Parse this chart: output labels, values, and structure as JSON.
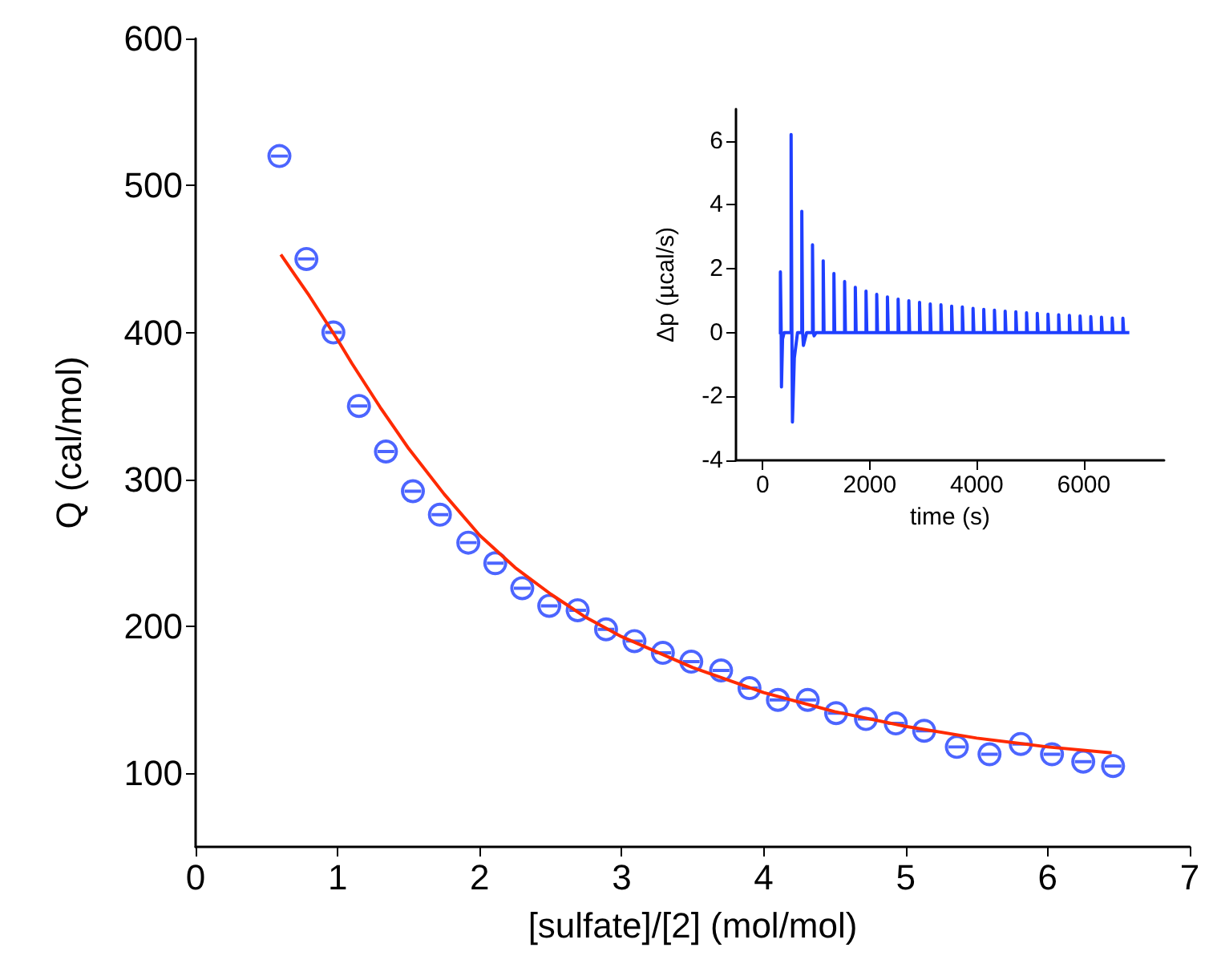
{
  "chart_data": [
    {
      "type": "scatter",
      "xlabel": "[sulfate]/[2] (mol/mol)",
      "ylabel": "Q (cal/mol)",
      "xlim": [
        0,
        7
      ],
      "xticks": [
        0,
        1,
        2,
        3,
        4,
        5,
        6,
        7
      ],
      "ylim": [
        50,
        600
      ],
      "yticks": [
        100,
        200,
        300,
        400,
        500,
        600
      ],
      "marker": "circle",
      "series": [
        {
          "color": "#1f3fff",
          "x": [
            0.59,
            0.78,
            0.97,
            1.15,
            1.34,
            1.53,
            1.72,
            1.92,
            2.11,
            2.3,
            2.49,
            2.69,
            2.89,
            3.09,
            3.29,
            3.49,
            3.7,
            3.9,
            4.1,
            4.31,
            4.51,
            4.72,
            4.93,
            5.13,
            5.36,
            5.59,
            5.81,
            6.03,
            6.25,
            6.46
          ],
          "values": [
            520,
            450,
            400,
            350,
            319,
            292,
            276,
            257,
            243,
            226,
            214,
            211,
            198,
            190,
            182,
            176,
            170,
            158,
            150,
            150,
            141,
            137,
            134,
            129,
            118,
            113,
            120,
            113,
            108,
            105
          ]
        },
        {
          "type": "line",
          "color": "#ff2a00",
          "marker": "none",
          "x": [
            0.6,
            0.7,
            0.8,
            0.9,
            1.0,
            1.1,
            1.2,
            1.3,
            1.4,
            1.5,
            1.75,
            2.0,
            2.25,
            2.5,
            2.75,
            3.0,
            3.5,
            4.0,
            4.5,
            5.0,
            5.5,
            6.0,
            6.45
          ],
          "values": [
            453,
            439,
            425,
            410,
            395,
            379,
            364,
            349,
            335,
            321,
            290,
            262,
            240,
            222,
            206,
            193,
            172,
            155,
            142,
            132,
            124,
            118,
            114
          ]
        }
      ]
    },
    {
      "type": "line",
      "xlabel": "time (s)",
      "ylabel": "Δp (µcal/s)",
      "xlim": [
        -500,
        7500
      ],
      "xticks": [
        0,
        2000,
        4000,
        6000
      ],
      "ylim": [
        -4,
        7
      ],
      "yticks": [
        -4,
        -2,
        0,
        2,
        4,
        6
      ],
      "marker": "none",
      "series": [
        {
          "color": "#1f3fff",
          "x": [
            300,
            330,
            330,
            345,
            350,
            370,
            400,
            530,
            530,
            545,
            555,
            590,
            650,
            730,
            730,
            745,
            760,
            820,
            930,
            930,
            945,
            960,
            1000,
            1130,
            1130,
            1145,
            1330,
            1330,
            1345,
            1530,
            1530,
            1545,
            1730,
            1730,
            1745,
            1930,
            1930,
            1945,
            2130,
            2130,
            2145,
            2330,
            2330,
            2345,
            2530,
            2530,
            2545,
            2730,
            2730,
            2745,
            2930,
            2930,
            2945,
            3130,
            3130,
            3145,
            3330,
            3330,
            3345,
            3530,
            3530,
            3545,
            3730,
            3730,
            3745,
            3930,
            3930,
            3945,
            4130,
            4130,
            4145,
            4330,
            4330,
            4345,
            4530,
            4530,
            4545,
            4730,
            4730,
            4745,
            4930,
            4930,
            4945,
            5130,
            5130,
            5145,
            5330,
            5330,
            5345,
            5530,
            5530,
            5545,
            5730,
            5730,
            5745,
            5930,
            5930,
            5945,
            6130,
            6130,
            6145,
            6330,
            6330,
            6345,
            6530,
            6530,
            6545,
            6730,
            6730,
            6745,
            6850
          ],
          "values": [
            0,
            0,
            1.9,
            0,
            -1.7,
            -0.2,
            0,
            0,
            6.2,
            0,
            -2.8,
            -0.8,
            0,
            0,
            3.8,
            0,
            -0.4,
            0,
            0,
            2.75,
            0,
            -0.1,
            0,
            0,
            2.25,
            0,
            0,
            1.85,
            0,
            0,
            1.6,
            0,
            0,
            1.42,
            0,
            0,
            1.3,
            0,
            0,
            1.2,
            0,
            0,
            1.12,
            0,
            0,
            1.05,
            0,
            0,
            1.0,
            0,
            0,
            0.95,
            0,
            0,
            0.9,
            0,
            0,
            0.87,
            0,
            0,
            0.83,
            0,
            0,
            0.8,
            0,
            0,
            0.76,
            0,
            0,
            0.73,
            0,
            0,
            0.7,
            0,
            0,
            0.67,
            0,
            0,
            0.65,
            0,
            0,
            0.62,
            0,
            0,
            0.6,
            0,
            0,
            0.58,
            0,
            0,
            0.56,
            0,
            0,
            0.54,
            0,
            0,
            0.52,
            0,
            0,
            0.5,
            0,
            0,
            0.48,
            0,
            0,
            0.46,
            0,
            0,
            0.45,
            0,
            0
          ]
        }
      ]
    }
  ]
}
